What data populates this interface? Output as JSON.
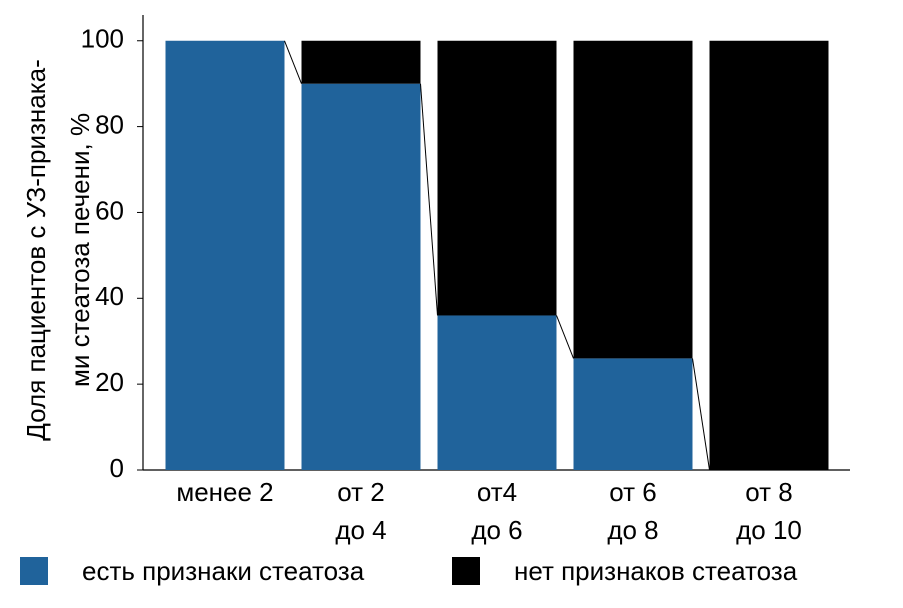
{
  "chart_data": {
    "type": "stacked_bar",
    "y_label": [
      "Доля пациентов с УЗ-признака-",
      "ми стеатоза печени, %"
    ],
    "categories": [
      [
        "менее 2"
      ],
      [
        "от 2",
        "до 4"
      ],
      [
        "от4",
        "до 6"
      ],
      [
        "от 6",
        "до 8"
      ],
      [
        "от 8",
        "до 10"
      ]
    ],
    "series": [
      {
        "name": "есть признаки стеатоза",
        "color": "#20639b",
        "values": [
          100,
          90,
          36,
          26,
          0
        ]
      },
      {
        "name": "нет признаков стеатоза",
        "color": "#000000",
        "values": [
          0,
          10,
          64,
          74,
          100
        ]
      }
    ],
    "ylim": [
      0,
      106
    ],
    "yticks": [
      0,
      20,
      40,
      60,
      80,
      100
    ],
    "connectors": true
  }
}
